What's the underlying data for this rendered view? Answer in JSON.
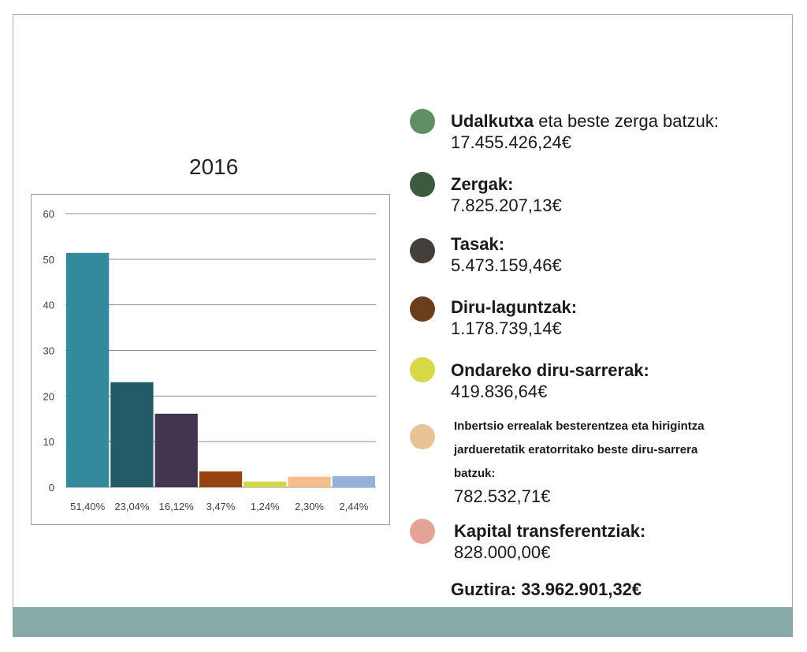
{
  "chart_title": "2016",
  "chart_data": {
    "type": "bar",
    "title": "2016",
    "categories": [
      "51,40%",
      "23,04%",
      "16,12%",
      "3,47%",
      "1,24%",
      "2,30%",
      "2,44%"
    ],
    "values": [
      51.4,
      23.04,
      16.12,
      3.47,
      1.24,
      2.3,
      2.44
    ],
    "colors": [
      "#338a9c",
      "#245b68",
      "#433452",
      "#96430e",
      "#d2d54a",
      "#f5bd8b",
      "#94b1d9"
    ],
    "ylim": [
      0,
      60
    ],
    "yticks": [
      "0",
      "10",
      "20",
      "30",
      "40",
      "50",
      "60"
    ],
    "grid": true,
    "xlabel": "",
    "ylabel": ""
  },
  "legend": [
    {
      "bold": "Udalkutxa",
      "normal": " eta beste zerga batzuk:",
      "amount": "17.455.426,24€",
      "color": "#5f8f63"
    },
    {
      "bold": "Zergak:",
      "normal": "",
      "amount": "7.825.207,13€",
      "color": "#3c5a3f"
    },
    {
      "bold": "Tasak:",
      "normal": "",
      "amount": "5.473.159,46€",
      "color": "#453f3b"
    },
    {
      "bold": "Diru-laguntzak:",
      "normal": "",
      "amount": "1.178.739,14€",
      "color": "#6b3f1b"
    },
    {
      "bold": "Ondareko diru-sarrerak:",
      "normal": "",
      "amount": "419.836,64€",
      "color": "#d8d848"
    },
    {
      "small": [
        "Inbertsio errealak besterentzea eta hirigintza",
        "jardueretatik eratorritako beste diru-sarrera",
        "batzuk:"
      ],
      "amount": "782.532,71€",
      "color": "#e8c396"
    },
    {
      "bold": "Kapital transferentziak:",
      "normal": "",
      "amount": "828.000,00€",
      "color": "#e4a495"
    }
  ],
  "total": "Guztira: 33.962.901,32€"
}
